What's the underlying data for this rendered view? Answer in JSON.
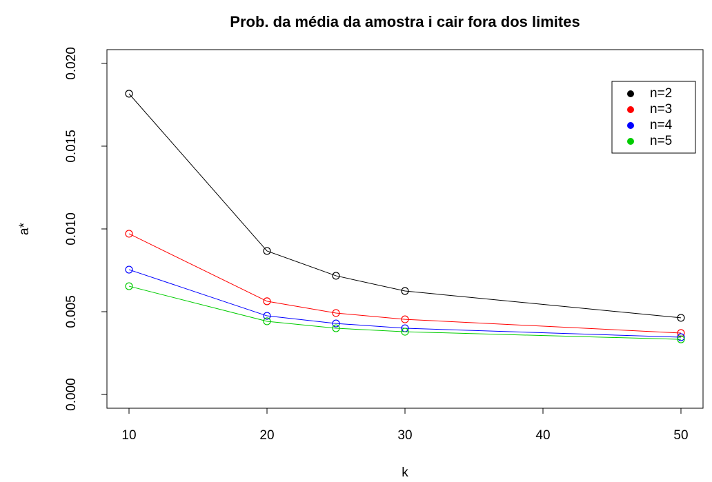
{
  "chart_data": {
    "type": "line",
    "title": "Prob. da média da amostra i cair fora dos limites",
    "x_label": "k",
    "y_label": "a*",
    "x": [
      10,
      20,
      25,
      30,
      50
    ],
    "series": [
      {
        "name": "n=2",
        "color": "#000000",
        "values": [
          0.01817,
          0.00867,
          0.00717,
          0.00625,
          0.00463
        ]
      },
      {
        "name": "n=3",
        "color": "#ff0000",
        "values": [
          0.00971,
          0.00563,
          0.00492,
          0.00454,
          0.00371
        ]
      },
      {
        "name": "n=4",
        "color": "#0000ff",
        "values": [
          0.00754,
          0.00475,
          0.00429,
          0.004,
          0.00346
        ]
      },
      {
        "name": "n=5",
        "color": "#00cc00",
        "values": [
          0.00654,
          0.00442,
          0.004,
          0.00379,
          0.00333
        ]
      }
    ],
    "xlim": [
      8.4,
      51.6
    ],
    "ylim": [
      -0.00083,
      0.02083
    ],
    "xticks": [
      10,
      20,
      30,
      40,
      50
    ],
    "yticks": [
      {
        "value": 0,
        "label": "0.000"
      },
      {
        "value": 0.005,
        "label": "0.005"
      },
      {
        "value": 0.01,
        "label": "0.010"
      },
      {
        "value": 0.015,
        "label": "0.015"
      },
      {
        "value": 0.02,
        "label": "0.020"
      }
    ],
    "legend": "top-right"
  }
}
